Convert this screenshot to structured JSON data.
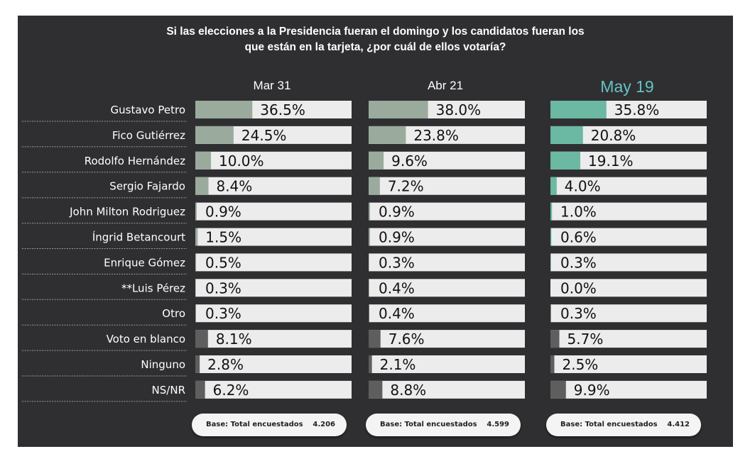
{
  "question": {
    "line1": "Si las elecciones a la Presidencia fueran el domingo y los candidatos  fueran los",
    "line2": "que están en la tarjeta, ¿por cuál de ellos votaría?"
  },
  "colors": {
    "panel": "#2f2f31",
    "bar_bg": "#ececec",
    "candidate_fill": "#9aab9d",
    "candidate_fill_latest": "#6bb8a3",
    "other_fill": "#5e5e5e",
    "latest_header": "#66c2c2"
  },
  "chart_data": {
    "type": "bar",
    "orientation": "horizontal",
    "categories": [
      "Gustavo Petro",
      "Fico Gutiérrez",
      "Rodolfo Hernández",
      "Sergio Fajardo",
      "John Milton Rodriguez",
      "Íngrid Betancourt",
      "Enrique Gómez",
      "**Luis Pérez",
      "Otro",
      "Voto en blanco",
      "Ninguno",
      "NS/NR"
    ],
    "series": [
      {
        "name": "Mar 31",
        "values": [
          36.5,
          24.5,
          10.0,
          8.4,
          0.9,
          1.5,
          0.5,
          0.3,
          0.3,
          8.1,
          2.8,
          6.2
        ],
        "labels": [
          "36.5%",
          "24.5%",
          "10.0%",
          "8.4%",
          "0.9%",
          "1.5%",
          "0.5%",
          "0.3%",
          "0.3%",
          "8.1%",
          "2.8%",
          "6.2%"
        ]
      },
      {
        "name": "Abr 21",
        "values": [
          38.0,
          23.8,
          9.6,
          7.2,
          0.9,
          0.9,
          0.3,
          0.4,
          0.4,
          7.6,
          2.1,
          8.8
        ],
        "labels": [
          "38.0%",
          "23.8%",
          "9.6%",
          "7.2%",
          "0.9%",
          "0.9%",
          "0.3%",
          "0.4%",
          "0.4%",
          "7.6%",
          "2.1%",
          "8.8%"
        ]
      },
      {
        "name": "May 19",
        "values": [
          35.8,
          20.8,
          19.1,
          4.0,
          1.0,
          0.6,
          0.3,
          0.0,
          0.3,
          5.7,
          2.5,
          9.9
        ],
        "labels": [
          "35.8%",
          "20.8%",
          "19.1%",
          "4.0%",
          "1.0%",
          "0.6%",
          "0.3%",
          "0.0%",
          "0.3%",
          "5.7%",
          "2.5%",
          "9.9%"
        ]
      }
    ],
    "xlim": [
      0,
      100
    ],
    "grid": false,
    "legend": "none"
  },
  "base": {
    "label": "Base: Total encuestados",
    "values": [
      "4.206",
      "4.599",
      "4.412"
    ]
  }
}
